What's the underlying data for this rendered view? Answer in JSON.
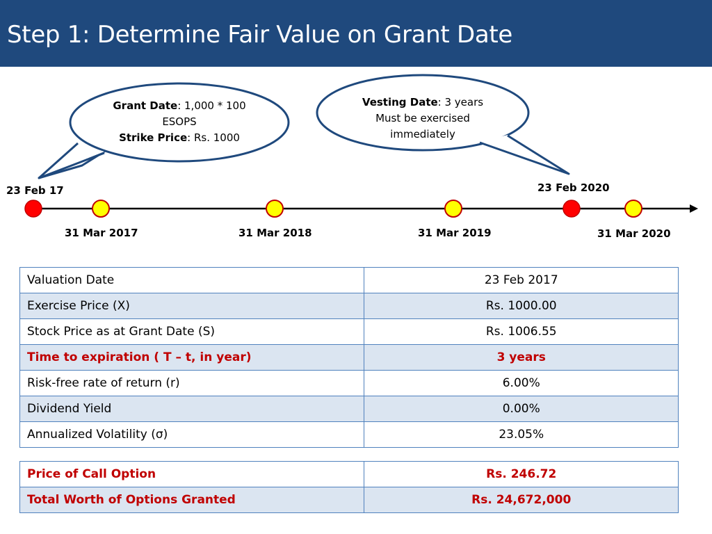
{
  "header": {
    "title": "Step 1: Determine Fair Value on Grant Date"
  },
  "bubbles": {
    "grant": {
      "label1": "Grant Date",
      "text1": ": 1,000 * 100",
      "text2": "ESOPS",
      "label2": "Strike Price",
      "text3": ": Rs. 1000"
    },
    "vesting": {
      "label1": "Vesting Date",
      "text1": ": 3 years",
      "text2": "Must be exercised",
      "text3": "immediately"
    }
  },
  "timeline": {
    "start_label": "23 Feb 17",
    "vest_label": "23 Feb 2020",
    "marks": [
      "31 Mar 2017",
      "31 Mar 2018",
      "31 Mar 2019",
      "31 Mar 2020"
    ]
  },
  "colors": {
    "header": "#1f497d",
    "event_dot": "#ff0000",
    "year_dot": "#ffff00",
    "highlight_text": "#c00000",
    "table_border": "#4f81bd",
    "row_alt": "#dbe5f1"
  },
  "inputs_table": [
    {
      "label": "Valuation Date",
      "value": "23 Feb 2017"
    },
    {
      "label": "Exercise Price (X)",
      "value": "Rs. 1000.00"
    },
    {
      "label": "Stock Price as at Grant Date (S)",
      "value": "Rs. 1006.55"
    },
    {
      "label": "Time to expiration ( T – t, in year)",
      "value": "3 years"
    },
    {
      "label": "Risk-free rate of return (r)",
      "value": "6.00%"
    },
    {
      "label": "Dividend Yield",
      "value": "0.00%"
    },
    {
      "label": "Annualized Volatility (σ)",
      "value": "23.05%"
    }
  ],
  "results_table": [
    {
      "label": "Price of Call Option",
      "value": "Rs. 246.72"
    },
    {
      "label": "Total Worth of Options Granted",
      "value": "Rs. 24,672,000"
    }
  ]
}
